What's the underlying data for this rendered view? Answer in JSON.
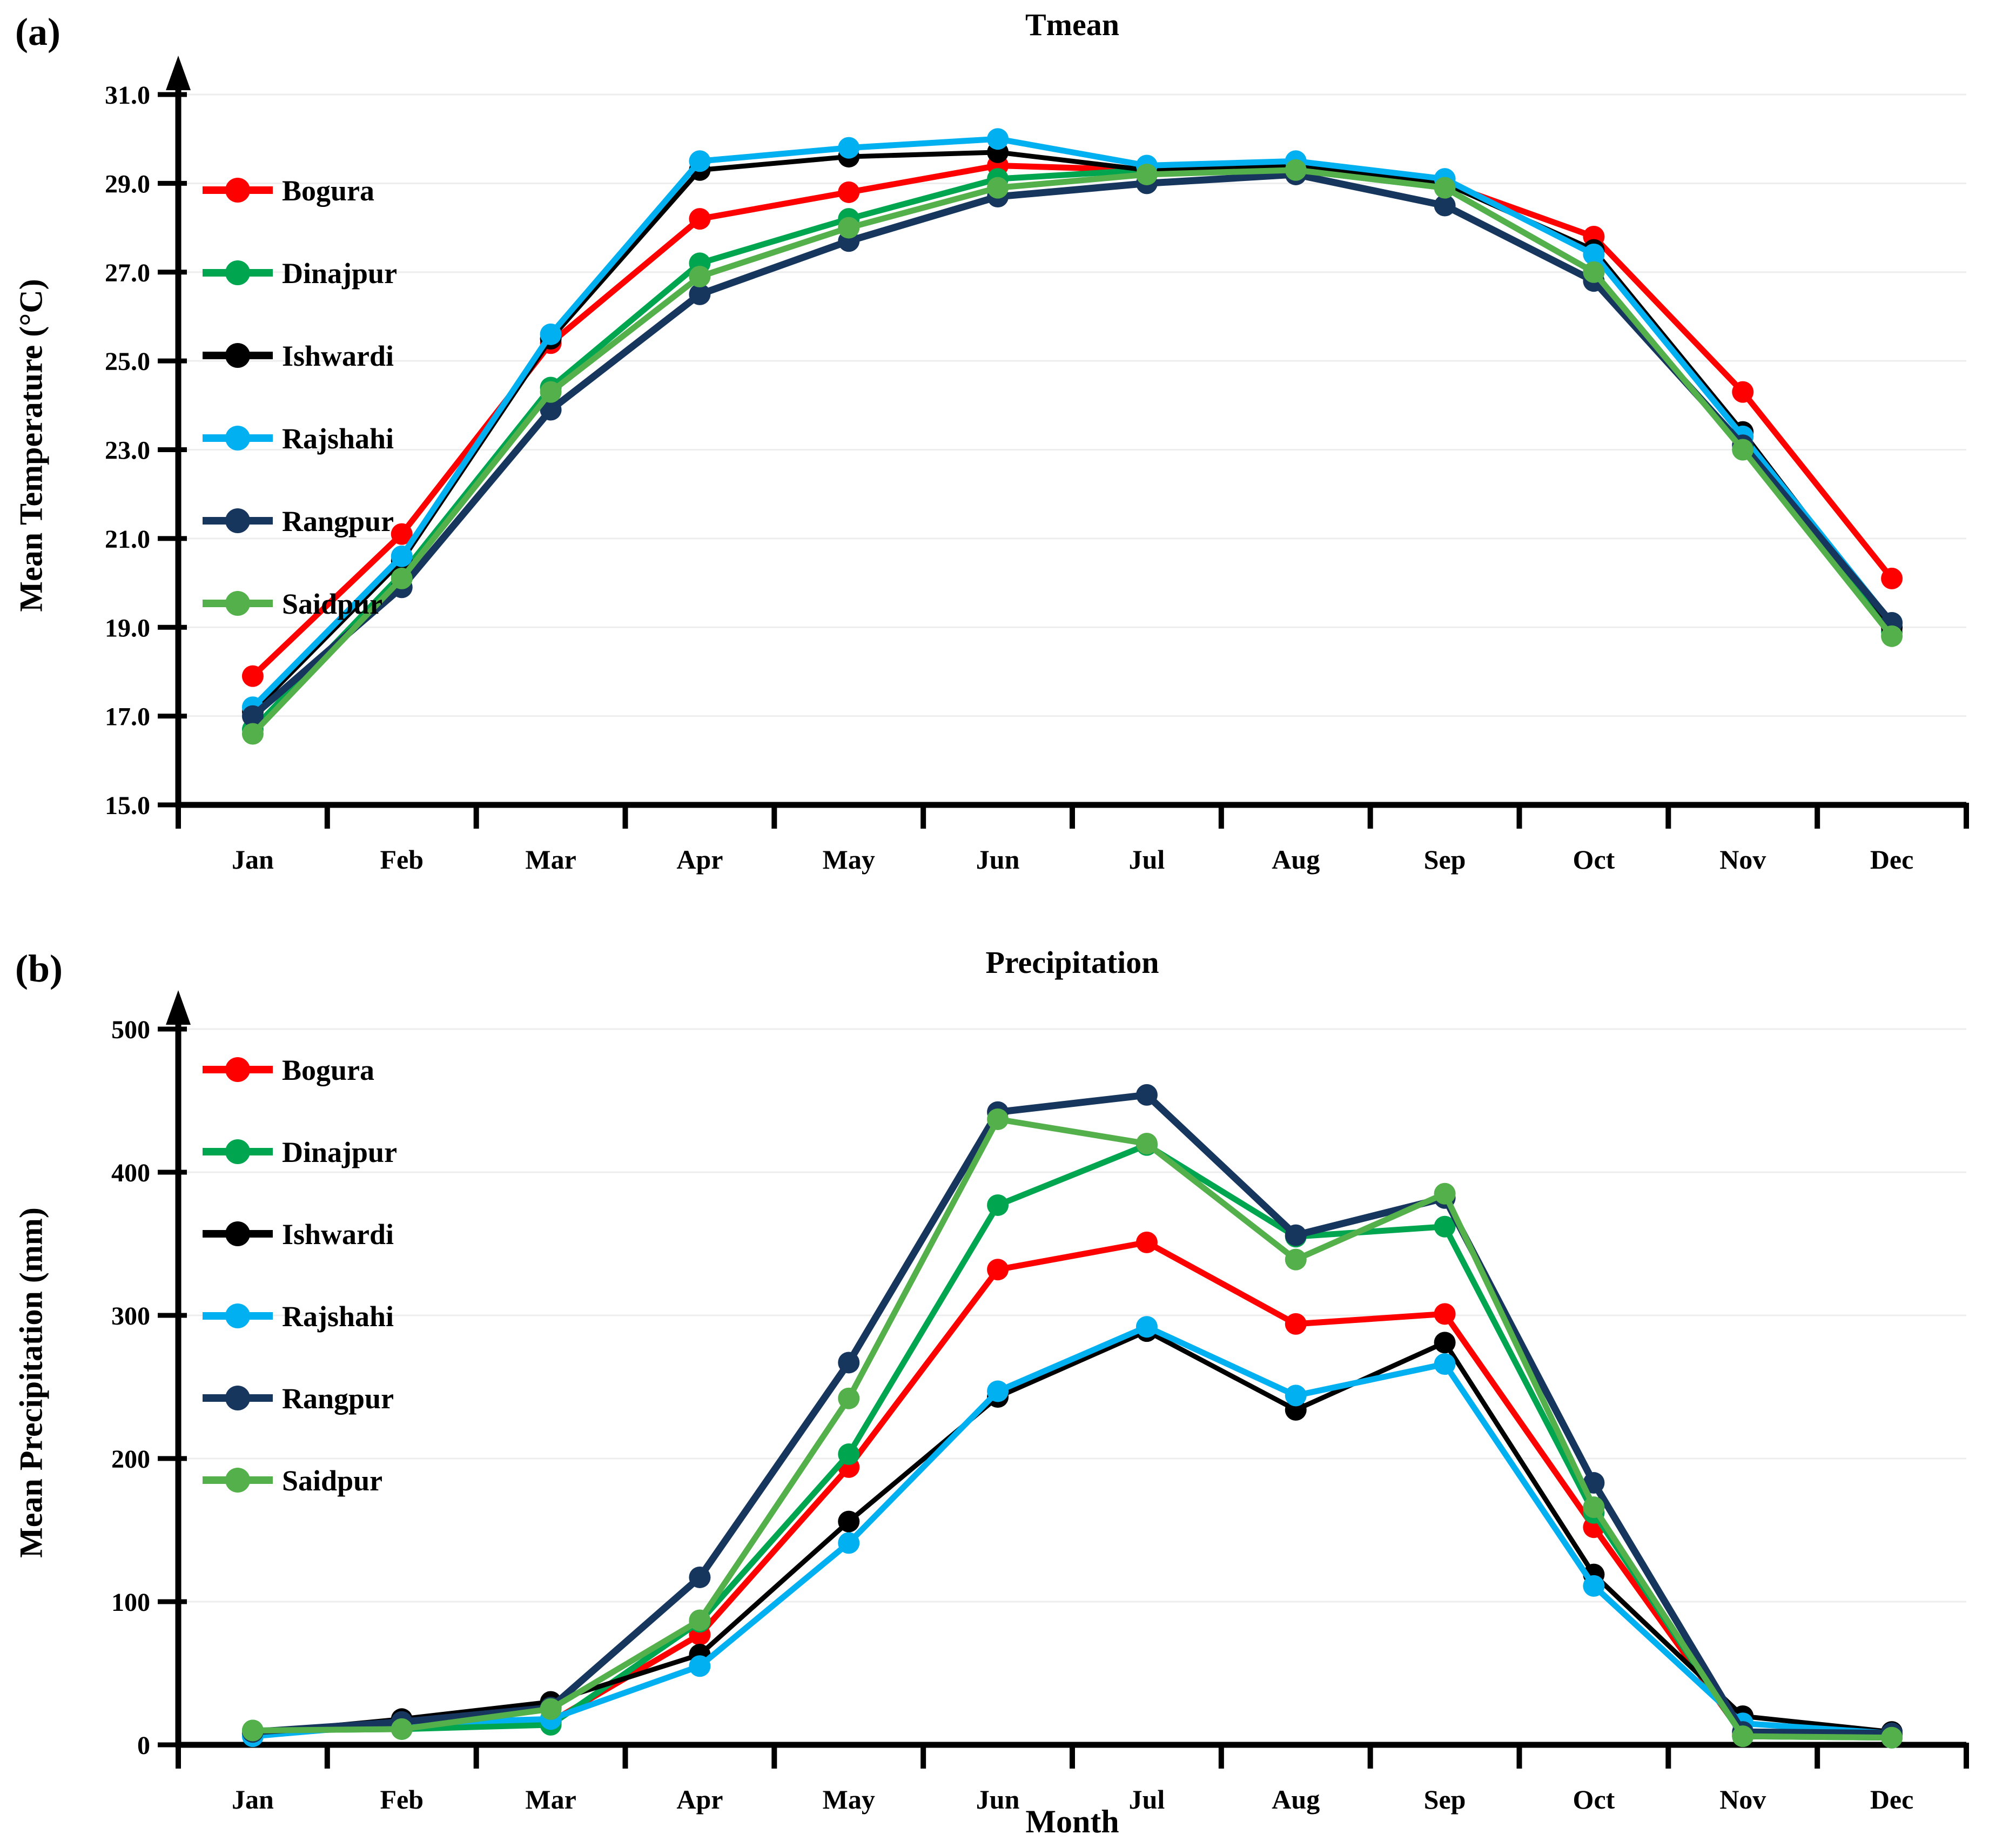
{
  "figure": {
    "panels": [
      {
        "panel_label": "(a)",
        "title": "Tmean",
        "y_axis_label": "Mean Temperature (°C)",
        "x_axis_label": ""
      },
      {
        "panel_label": "(b)",
        "title": "Precipitation",
        "y_axis_label": "Mean Precipitation (mm)",
        "x_axis_label": "Month"
      }
    ],
    "colors": {
      "bogura": "#FF0000",
      "dinajpur": "#00A550",
      "ishwardi": "#000000",
      "rajshahi": "#00B0F0",
      "rangpur": "#17365D",
      "saidpur": "#54B04A",
      "gridline": "#EDEDED",
      "axis": "#000000"
    }
  },
  "chart_data": [
    {
      "type": "line",
      "title": "Tmean",
      "xlabel": "",
      "ylabel": "Mean Temperature (°C)",
      "categories": [
        "Jan",
        "Feb",
        "Mar",
        "Apr",
        "May",
        "Jun",
        "Jul",
        "Aug",
        "Sep",
        "Oct",
        "Nov",
        "Dec"
      ],
      "ylim": [
        15.0,
        31.0
      ],
      "y_tick_step": 2.0,
      "y_tick_labels": [
        "15.0",
        "17.0",
        "19.0",
        "21.0",
        "23.0",
        "25.0",
        "27.0",
        "29.0",
        "31.0"
      ],
      "grid": true,
      "legend_position": "top-left",
      "series": [
        {
          "name": "Bogura",
          "color": "#FF0000",
          "width": 11,
          "values": [
            17.9,
            21.1,
            25.4,
            28.2,
            28.8,
            29.4,
            29.3,
            29.3,
            29.0,
            27.8,
            24.3,
            20.1
          ]
        },
        {
          "name": "Dinajpur",
          "color": "#00A550",
          "width": 11,
          "values": [
            16.7,
            20.2,
            24.4,
            27.2,
            28.2,
            29.1,
            29.3,
            29.3,
            28.9,
            27.0,
            23.0,
            18.9
          ]
        },
        {
          "name": "Ishwardi",
          "color": "#000000",
          "width": 9,
          "values": [
            17.1,
            20.5,
            25.5,
            29.3,
            29.6,
            29.7,
            29.3,
            29.4,
            29.0,
            27.5,
            23.4,
            19.0
          ]
        },
        {
          "name": "Rajshahi",
          "color": "#00B0F0",
          "width": 11,
          "values": [
            17.2,
            20.6,
            25.6,
            29.5,
            29.8,
            30.0,
            29.4,
            29.5,
            29.1,
            27.4,
            23.3,
            19.1
          ]
        },
        {
          "name": "Rangpur",
          "color": "#17365D",
          "width": 13,
          "values": [
            17.0,
            19.9,
            23.9,
            26.5,
            27.7,
            28.7,
            29.0,
            29.2,
            28.5,
            26.8,
            23.1,
            19.1
          ]
        },
        {
          "name": "Saidpur",
          "color": "#54B04A",
          "width": 11,
          "values": [
            16.6,
            20.1,
            24.3,
            26.9,
            28.0,
            28.9,
            29.2,
            29.3,
            28.9,
            27.0,
            23.0,
            18.8
          ]
        }
      ]
    },
    {
      "type": "line",
      "title": "Precipitation",
      "xlabel": "Month",
      "ylabel": "Mean Precipitation (mm)",
      "categories": [
        "Jan",
        "Feb",
        "Mar",
        "Apr",
        "May",
        "Jun",
        "Jul",
        "Aug",
        "Sep",
        "Oct",
        "Nov",
        "Dec"
      ],
      "ylim": [
        0,
        500
      ],
      "y_tick_step": 100,
      "y_tick_labels": [
        "0",
        "100",
        "200",
        "300",
        "400",
        "500"
      ],
      "grid": true,
      "legend_position": "top-left",
      "series": [
        {
          "name": "Bogura",
          "color": "#FF0000",
          "width": 11,
          "values": [
            8,
            13,
            16,
            77,
            194,
            332,
            351,
            294,
            301,
            152,
            7,
            7
          ]
        },
        {
          "name": "Dinajpur",
          "color": "#00A550",
          "width": 11,
          "values": [
            10,
            11,
            14,
            86,
            203,
            377,
            419,
            355,
            362,
            162,
            6,
            5
          ]
        },
        {
          "name": "Ishwardi",
          "color": "#000000",
          "width": 9,
          "values": [
            8,
            18,
            30,
            63,
            156,
            243,
            289,
            234,
            281,
            119,
            20,
            9
          ]
        },
        {
          "name": "Rajshahi",
          "color": "#00B0F0",
          "width": 11,
          "values": [
            6,
            15,
            18,
            55,
            141,
            247,
            292,
            244,
            266,
            111,
            15,
            8
          ]
        },
        {
          "name": "Rangpur",
          "color": "#17365D",
          "width": 13,
          "values": [
            9,
            16,
            26,
            117,
            267,
            442,
            454,
            356,
            382,
            183,
            9,
            8
          ]
        },
        {
          "name": "Saidpur",
          "color": "#54B04A",
          "width": 11,
          "values": [
            10,
            11,
            25,
            87,
            242,
            437,
            420,
            339,
            385,
            166,
            6,
            5
          ]
        }
      ]
    }
  ]
}
